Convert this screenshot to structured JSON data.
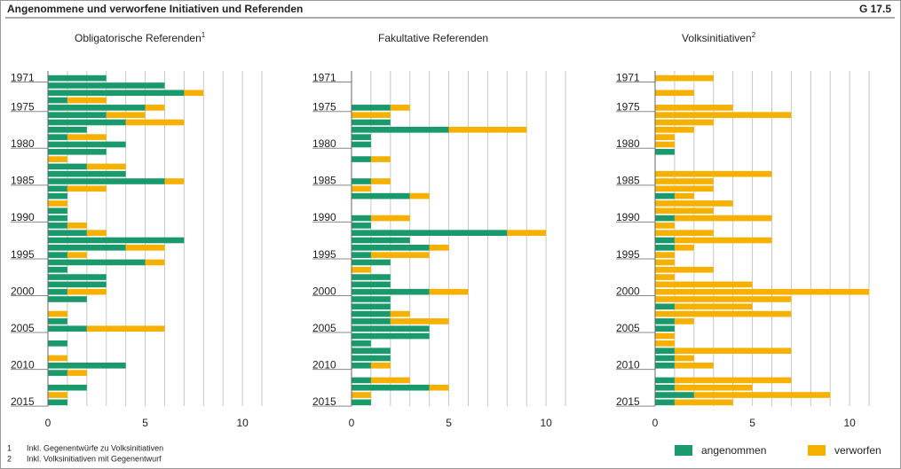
{
  "header": {
    "title": "Angenommene und verworfene Initiativen und Referenden",
    "code": "G 17.5"
  },
  "footnotes": [
    {
      "mark": "1",
      "text": "Inkl. Gegenentwürfe zu Volksinitiativen"
    },
    {
      "mark": "2",
      "text": "Inkl. Volksinitiativen mit Gegenentwurf"
    }
  ],
  "chart_data": [
    {
      "type": "bar",
      "orientation": "horizontal",
      "stacked": true,
      "title": "Obligatorische Referenden",
      "title_note": "1",
      "categories": [
        "1971",
        null,
        null,
        null,
        "1975",
        null,
        null,
        null,
        null,
        "1980",
        null,
        null,
        null,
        null,
        "1985",
        null,
        null,
        null,
        null,
        "1990",
        null,
        null,
        null,
        null,
        "1995",
        null,
        null,
        null,
        null,
        "2000",
        null,
        null,
        null,
        null,
        "2005",
        null,
        null,
        null,
        null,
        "2010",
        null,
        null,
        null,
        null,
        "2015"
      ],
      "series": [
        {
          "name": "angenommen",
          "color": "#1a9a6c",
          "values": [
            3,
            6,
            7,
            1,
            5,
            3,
            4,
            2,
            1,
            4,
            3,
            0,
            2,
            4,
            6,
            1,
            1,
            0,
            1,
            1,
            1,
            2,
            7,
            4,
            1,
            5,
            1,
            3,
            3,
            1,
            2,
            0,
            0,
            1,
            2,
            0,
            1,
            0,
            0,
            4,
            1,
            0,
            2,
            0,
            1
          ]
        },
        {
          "name": "verworfen",
          "color": "#f5b000",
          "values": [
            0,
            0,
            1,
            2,
            1,
            2,
            3,
            0,
            2,
            0,
            0,
            1,
            2,
            0,
            1,
            2,
            0,
            1,
            0,
            0,
            1,
            1,
            0,
            2,
            1,
            1,
            0,
            0,
            0,
            2,
            0,
            0,
            1,
            0,
            4,
            0,
            0,
            0,
            1,
            0,
            1,
            0,
            0,
            1,
            0
          ]
        }
      ],
      "xlim": [
        0,
        11.5
      ],
      "xticks": [
        0,
        5,
        10
      ],
      "minor_xticks": [
        1,
        2,
        3,
        4,
        6,
        7,
        8,
        9,
        11
      ]
    },
    {
      "type": "bar",
      "orientation": "horizontal",
      "stacked": true,
      "title": "Fakultative Referenden",
      "categories": [
        "1971",
        null,
        null,
        null,
        "1975",
        null,
        null,
        null,
        null,
        "1980",
        null,
        null,
        null,
        null,
        "1985",
        null,
        null,
        null,
        null,
        "1990",
        null,
        null,
        null,
        null,
        "1995",
        null,
        null,
        null,
        null,
        "2000",
        null,
        null,
        null,
        null,
        "2005",
        null,
        null,
        null,
        null,
        "2010",
        null,
        null,
        null,
        null,
        "2015"
      ],
      "series": [
        {
          "name": "angenommen",
          "color": "#1a9a6c",
          "values": [
            0,
            0,
            0,
            0,
            2,
            0,
            2,
            5,
            1,
            1,
            0,
            1,
            0,
            0,
            1,
            0,
            3,
            0,
            0,
            1,
            1,
            8,
            3,
            4,
            1,
            2,
            0,
            2,
            2,
            4,
            2,
            2,
            2,
            2,
            4,
            4,
            1,
            2,
            2,
            1,
            0,
            1,
            4,
            0,
            1
          ]
        },
        {
          "name": "verworfen",
          "color": "#f5b000",
          "values": [
            0,
            0,
            0,
            0,
            1,
            2,
            0,
            4,
            0,
            0,
            0,
            1,
            0,
            0,
            1,
            1,
            1,
            0,
            0,
            2,
            0,
            2,
            0,
            1,
            3,
            0,
            1,
            0,
            0,
            2,
            0,
            0,
            1,
            3,
            0,
            0,
            0,
            0,
            0,
            1,
            0,
            2,
            1,
            1,
            0
          ]
        }
      ],
      "xlim": [
        0,
        11.5
      ],
      "xticks": [
        0,
        5,
        10
      ],
      "minor_xticks": [
        1,
        2,
        3,
        4,
        6,
        7,
        8,
        9,
        11
      ]
    },
    {
      "type": "bar",
      "orientation": "horizontal",
      "stacked": true,
      "title": "Volksinitiativen",
      "title_note": "2",
      "categories": [
        "1971",
        null,
        null,
        null,
        "1975",
        null,
        null,
        null,
        null,
        "1980",
        null,
        null,
        null,
        null,
        "1985",
        null,
        null,
        null,
        null,
        "1990",
        null,
        null,
        null,
        null,
        "1995",
        null,
        null,
        null,
        null,
        "2000",
        null,
        null,
        null,
        null,
        "2005",
        null,
        null,
        null,
        null,
        "2010",
        null,
        null,
        null,
        null,
        "2015"
      ],
      "series": [
        {
          "name": "angenommen",
          "color": "#1a9a6c",
          "values": [
            0,
            0,
            0,
            0,
            0,
            0,
            0,
            0,
            0,
            0,
            1,
            0,
            0,
            0,
            0,
            0,
            1,
            0,
            0,
            1,
            0,
            0,
            1,
            1,
            0,
            0,
            0,
            0,
            0,
            0,
            0,
            1,
            0,
            1,
            1,
            0,
            0,
            1,
            1,
            1,
            0,
            1,
            1,
            2,
            1
          ]
        },
        {
          "name": "verworfen",
          "color": "#f5b000",
          "values": [
            3,
            0,
            2,
            0,
            4,
            7,
            3,
            2,
            1,
            1,
            0,
            0,
            0,
            6,
            3,
            3,
            1,
            4,
            3,
            5,
            1,
            3,
            5,
            1,
            1,
            1,
            3,
            1,
            5,
            11,
            7,
            4,
            7,
            1,
            0,
            1,
            1,
            6,
            1,
            2,
            0,
            6,
            4,
            7,
            3
          ]
        }
      ],
      "xlim": [
        0,
        11.5
      ],
      "xticks": [
        0,
        5,
        10
      ],
      "minor_xticks": [
        1,
        2,
        3,
        4,
        6,
        7,
        8,
        9,
        11
      ]
    }
  ]
}
